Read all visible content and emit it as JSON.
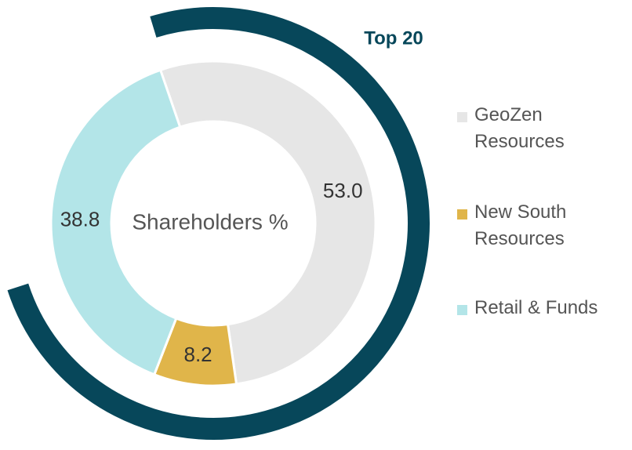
{
  "chart_data": {
    "type": "donut",
    "center_label": "Shareholders %",
    "annotation": "Top 20",
    "categories": [
      "GeoZen Resources",
      "New South Resources",
      "Retail & Funds"
    ],
    "values": [
      53.0,
      8.2,
      38.8
    ],
    "value_labels": [
      "53.0",
      "8.2",
      "38.8"
    ],
    "colors": [
      "#e6e6e6",
      "#e0b54a",
      "#b3e5e8"
    ]
  }
}
